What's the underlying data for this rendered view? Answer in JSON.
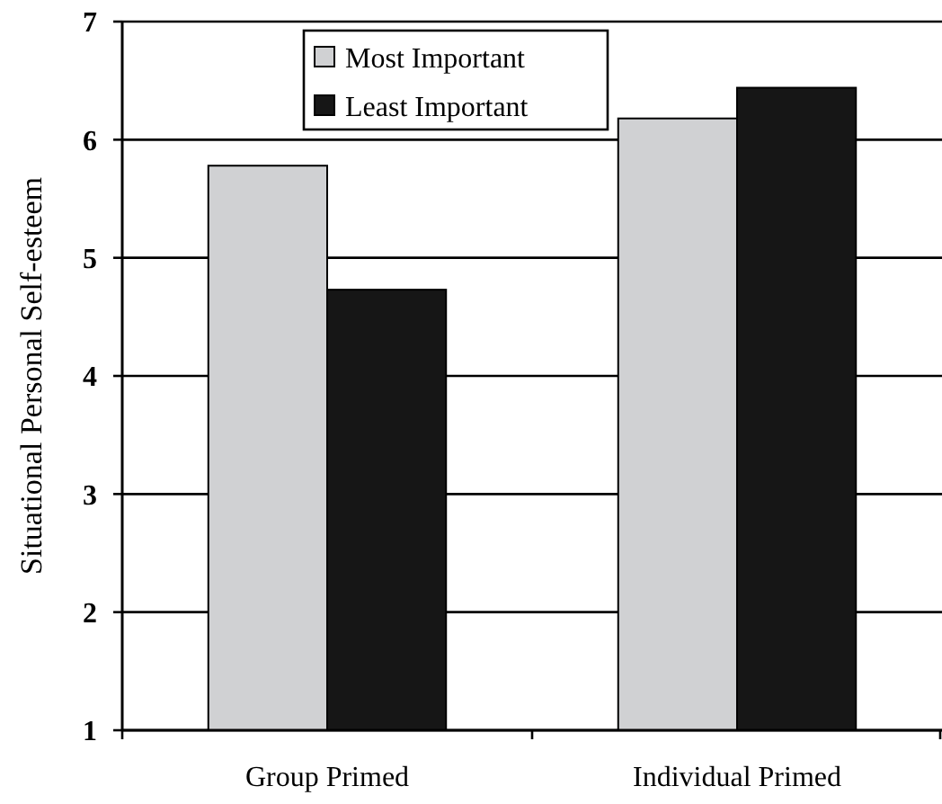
{
  "chart_data": {
    "type": "bar",
    "ylabel": "Situational Personal Self-esteem",
    "categories": [
      "Group Primed",
      "Individual Primed"
    ],
    "series": [
      {
        "name": "Most Important",
        "color": "#d0d1d3",
        "values": [
          5.78,
          6.18
        ]
      },
      {
        "name": "Least Important",
        "color": "#161616",
        "values": [
          4.73,
          6.44
        ]
      }
    ],
    "ylim": [
      1,
      7
    ],
    "yticks": [
      1,
      2,
      3,
      4,
      5,
      6,
      7
    ],
    "grid": "y",
    "legend": "top"
  }
}
